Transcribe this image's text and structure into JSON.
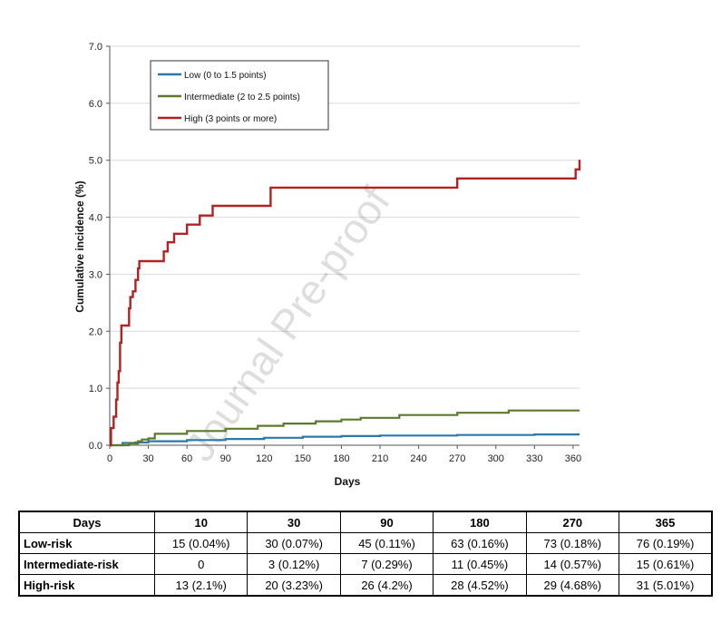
{
  "chart_data": {
    "type": "line",
    "title": "",
    "xlabel": "Days",
    "ylabel": "Cumulative incidence (%)",
    "xlim": [
      0,
      365
    ],
    "ylim": [
      0,
      7
    ],
    "x_ticks": [
      0,
      30,
      60,
      90,
      120,
      150,
      180,
      210,
      240,
      270,
      300,
      330,
      360
    ],
    "y_ticks": [
      "0.0",
      "1.0",
      "2.0",
      "3.0",
      "4.0",
      "5.0",
      "6.0",
      "7.0"
    ],
    "grid": "horizontal",
    "legend_position": "top-left",
    "series": [
      {
        "name": "Low (0 to 1.5 points)",
        "color": "#2e78a8",
        "points": [
          [
            0,
            0
          ],
          [
            10,
            0.04
          ],
          [
            20,
            0.05
          ],
          [
            30,
            0.07
          ],
          [
            60,
            0.09
          ],
          [
            90,
            0.11
          ],
          [
            120,
            0.13
          ],
          [
            150,
            0.15
          ],
          [
            180,
            0.16
          ],
          [
            210,
            0.17
          ],
          [
            240,
            0.17
          ],
          [
            270,
            0.18
          ],
          [
            300,
            0.18
          ],
          [
            330,
            0.19
          ],
          [
            365,
            0.19
          ]
        ]
      },
      {
        "name": "Intermediate (2 to 2.5 points)",
        "color": "#5b7a2e",
        "points": [
          [
            0,
            0
          ],
          [
            10,
            0
          ],
          [
            15,
            0.03
          ],
          [
            22,
            0.07
          ],
          [
            25,
            0.1
          ],
          [
            30,
            0.12
          ],
          [
            35,
            0.2
          ],
          [
            60,
            0.25
          ],
          [
            90,
            0.29
          ],
          [
            115,
            0.34
          ],
          [
            135,
            0.38
          ],
          [
            160,
            0.42
          ],
          [
            180,
            0.45
          ],
          [
            195,
            0.48
          ],
          [
            225,
            0.53
          ],
          [
            270,
            0.57
          ],
          [
            310,
            0.61
          ],
          [
            365,
            0.61
          ]
        ]
      },
      {
        "name": "High (3 points or more)",
        "color": "#b22222",
        "points": [
          [
            0,
            0
          ],
          [
            1,
            0.3
          ],
          [
            3,
            0.5
          ],
          [
            5,
            0.8
          ],
          [
            6,
            1.1
          ],
          [
            7,
            1.3
          ],
          [
            8,
            1.8
          ],
          [
            9,
            2.1
          ],
          [
            13,
            2.1
          ],
          [
            15,
            2.4
          ],
          [
            16,
            2.6
          ],
          [
            18,
            2.7
          ],
          [
            20,
            2.9
          ],
          [
            22,
            3.1
          ],
          [
            23,
            3.23
          ],
          [
            40,
            3.23
          ],
          [
            42,
            3.4
          ],
          [
            45,
            3.56
          ],
          [
            50,
            3.71
          ],
          [
            60,
            3.87
          ],
          [
            70,
            4.03
          ],
          [
            80,
            4.2
          ],
          [
            125,
            4.52
          ],
          [
            270,
            4.68
          ],
          [
            360,
            4.68
          ],
          [
            362,
            4.84
          ],
          [
            365,
            5.01
          ]
        ]
      }
    ]
  },
  "watermark": "Journal Pre-proof",
  "table": {
    "headers": [
      "Days",
      "10",
      "30",
      "90",
      "180",
      "270",
      "365"
    ],
    "rows": [
      {
        "label": "Low-risk",
        "cells": [
          "15 (0.04%)",
          "30 (0.07%)",
          "45 (0.11%)",
          "63 (0.16%)",
          "73 (0.18%)",
          "76 (0.19%)"
        ]
      },
      {
        "label": "Intermediate-risk",
        "cells": [
          "0",
          "3 (0.12%)",
          "7 (0.29%)",
          "11 (0.45%)",
          "14 (0.57%)",
          "15 (0.61%)"
        ]
      },
      {
        "label": "High-risk",
        "cells": [
          "13 (2.1%)",
          "20 (3.23%)",
          "26 (4.2%)",
          "28 (4.52%)",
          "29 (4.68%)",
          "31 (5.01%)"
        ]
      }
    ]
  }
}
